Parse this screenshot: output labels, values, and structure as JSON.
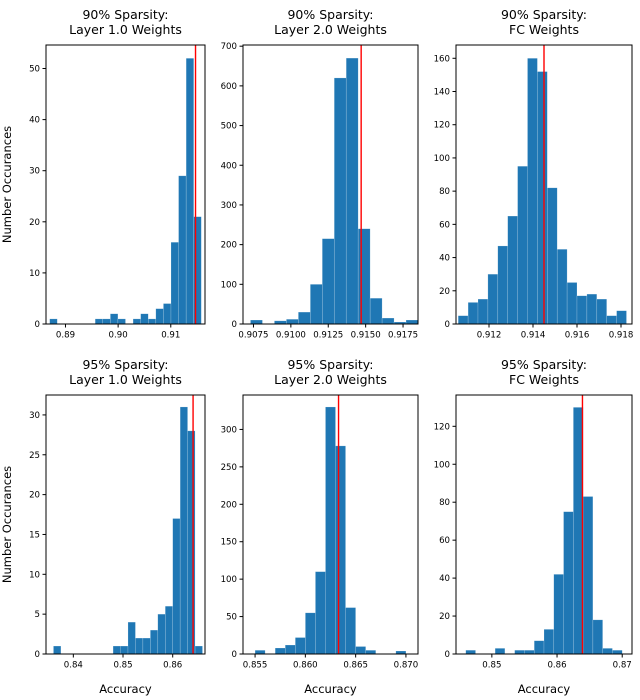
{
  "figure": {
    "ylabel": "Number Occurances",
    "xlabel": "Accuracy",
    "bar_color": "#1f77b4",
    "vline_color": "#ff0000",
    "spine_color": "#000000"
  },
  "chart_data": [
    {
      "type": "bar",
      "title1": "90% Sparsity:",
      "title2": "Layer 1.0 Weights",
      "bin_start": 0.887,
      "bin_width": 0.00144,
      "counts": [
        1,
        0,
        0,
        0,
        0,
        0,
        1,
        1,
        2,
        1,
        0,
        1,
        2,
        1,
        3,
        4,
        16,
        29,
        52,
        21
      ],
      "vline": 0.9147,
      "xlim": [
        0.8863,
        0.9165
      ],
      "ylim": [
        0,
        54.6
      ],
      "xticks": [
        0.89,
        0.9,
        0.91
      ],
      "xtick_labels": [
        "0.89",
        "0.90",
        "0.91"
      ],
      "yticks": [
        0,
        10,
        20,
        30,
        40,
        50
      ],
      "show_ylabel": true,
      "show_xlabel": false
    },
    {
      "type": "bar",
      "title1": "90% Sparsity:",
      "title2": "Layer 2.0 Weights",
      "bin_start": 0.9073,
      "bin_width": 0.0008,
      "counts": [
        10,
        0,
        8,
        12,
        30,
        100,
        215,
        620,
        670,
        240,
        65,
        15,
        5,
        10
      ],
      "vline": 0.9147,
      "xlim": [
        0.9068,
        0.9185
      ],
      "ylim": [
        0,
        703
      ],
      "xticks": [
        0.9075,
        0.91,
        0.9125,
        0.915,
        0.9175
      ],
      "xtick_labels": [
        "0.9075",
        "0.9100",
        "0.9125",
        "0.9150",
        "0.9175"
      ],
      "yticks": [
        0,
        100,
        200,
        300,
        400,
        500,
        600,
        700
      ],
      "show_ylabel": false,
      "show_xlabel": false
    },
    {
      "type": "bar",
      "title1": "90% Sparsity:",
      "title2": "FC Weights",
      "bin_start": 0.9106,
      "bin_width": 0.00045,
      "counts": [
        5,
        13,
        15,
        30,
        47,
        65,
        95,
        160,
        152,
        82,
        45,
        25,
        17,
        18,
        15,
        5,
        8
      ],
      "vline": 0.9145,
      "xlim": [
        0.9105,
        0.9185
      ],
      "ylim": [
        0,
        168
      ],
      "xticks": [
        0.912,
        0.914,
        0.916,
        0.918
      ],
      "xtick_labels": [
        "0.912",
        "0.914",
        "0.916",
        "0.918"
      ],
      "yticks": [
        0,
        20,
        40,
        60,
        80,
        100,
        120,
        140,
        160
      ],
      "show_ylabel": false,
      "show_xlabel": false
    },
    {
      "type": "bar",
      "title1": "95% Sparsity:",
      "title2": "Layer 1.0 Weights",
      "bin_start": 0.836,
      "bin_width": 0.0015,
      "counts": [
        1,
        0,
        0,
        0,
        0,
        0,
        0,
        0,
        1,
        1,
        4,
        2,
        2,
        3,
        5,
        6,
        17,
        31,
        28,
        1
      ],
      "vline": 0.8641,
      "xlim": [
        0.8345,
        0.8665
      ],
      "ylim": [
        0,
        32.5
      ],
      "xticks": [
        0.84,
        0.85,
        0.86
      ],
      "xtick_labels": [
        "0.84",
        "0.85",
        "0.86"
      ],
      "yticks": [
        0,
        5,
        10,
        15,
        20,
        25,
        30
      ],
      "show_ylabel": true,
      "show_xlabel": true
    },
    {
      "type": "bar",
      "title1": "95% Sparsity:",
      "title2": "Layer 2.0 Weights",
      "bin_start": 0.855,
      "bin_width": 0.001,
      "counts": [
        5,
        0,
        8,
        12,
        22,
        55,
        110,
        330,
        278,
        62,
        10,
        5,
        0,
        0,
        4
      ],
      "vline": 0.8633,
      "xlim": [
        0.8538,
        0.8712
      ],
      "ylim": [
        0,
        346
      ],
      "xticks": [
        0.855,
        0.86,
        0.865,
        0.87
      ],
      "xtick_labels": [
        "0.855",
        "0.860",
        "0.865",
        "0.870"
      ],
      "yticks": [
        0,
        50,
        100,
        150,
        200,
        250,
        300
      ],
      "show_ylabel": false,
      "show_xlabel": true
    },
    {
      "type": "bar",
      "title1": "95% Sparsity:",
      "title2": "FC Weights",
      "bin_start": 0.846,
      "bin_width": 0.0015,
      "counts": [
        2,
        0,
        0,
        3,
        0,
        2,
        2,
        7,
        13,
        42,
        75,
        130,
        83,
        18,
        3,
        2
      ],
      "vline": 0.8639,
      "xlim": [
        0.8445,
        0.8715
      ],
      "ylim": [
        0,
        136.5
      ],
      "xticks": [
        0.85,
        0.86,
        0.87
      ],
      "xtick_labels": [
        "0.85",
        "0.86",
        "0.87"
      ],
      "yticks": [
        0,
        20,
        40,
        60,
        80,
        100,
        120
      ],
      "show_ylabel": false,
      "show_xlabel": true
    }
  ]
}
